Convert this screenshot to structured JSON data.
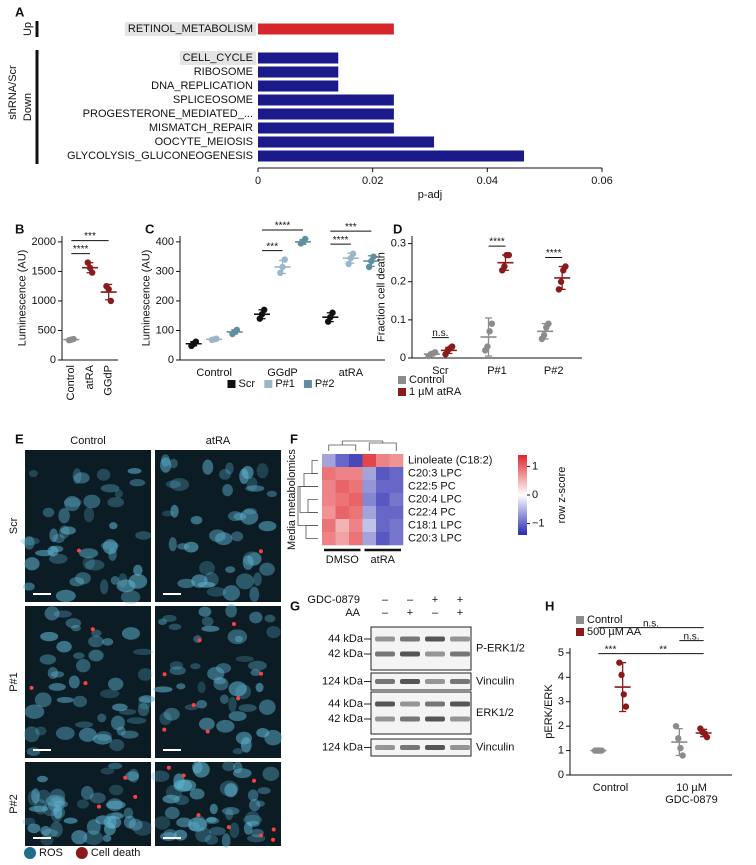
{
  "chart_data": [
    {
      "panel": "A",
      "type": "hbar",
      "xlabel": "p-adj",
      "ylabel": "shRNA/Scr",
      "xlim": [
        0,
        0.06
      ],
      "xticks": [
        0,
        0.02,
        0.04,
        0.06
      ],
      "groups": [
        {
          "name": "Up",
          "color": "#d7262b",
          "categories": [
            "RETINOL_METABOLISM"
          ],
          "values": [
            0.0237
          ],
          "highlight": [
            true
          ]
        },
        {
          "name": "Down",
          "color": "#1a1a8a",
          "categories": [
            "CELL_CYCLE",
            "RIBOSOME",
            "DNA_REPLICATION",
            "SPLICEOSOME",
            "PROGESTERONE_MEDIATED_...",
            "MISMATCH_REPAIR",
            "OOCYTE_MEIOSIS",
            "GLYCOLYSIS_GLUCONEOGENESIS"
          ],
          "values": [
            0.014,
            0.014,
            0.014,
            0.0237,
            0.0237,
            0.0237,
            0.0307,
            0.0464
          ],
          "highlight": [
            true,
            false,
            false,
            false,
            false,
            false,
            false,
            false
          ]
        }
      ]
    },
    {
      "panel": "B",
      "type": "dot",
      "ylabel": "Luminescence (AU)",
      "ylim": [
        0,
        2100
      ],
      "yticks": [
        0,
        500,
        1000,
        1500,
        2000
      ],
      "categories": [
        "Control",
        "atRA",
        "GGdP"
      ],
      "rotate_categories": true,
      "series": [
        {
          "colors": [
            "#8c8c8c",
            "#8b1a1a",
            "#8b1a1a"
          ],
          "points": [
            [
              335,
              345,
              355
            ],
            [
              1650,
              1560,
              1480
            ],
            [
              1250,
              1200,
              1000
            ]
          ],
          "mean": [
            345,
            1563,
            1150
          ],
          "sd": [
            10,
            85,
            130
          ]
        }
      ],
      "annotations": [
        {
          "text": "****",
          "from": [
            0,
            0
          ],
          "to": [
            1,
            0
          ]
        },
        {
          "text": "***",
          "from": [
            0,
            0
          ],
          "to": [
            2,
            0
          ]
        }
      ]
    },
    {
      "panel": "C",
      "type": "dot",
      "ylabel": "Luminescence (AU)",
      "ylim": [
        0,
        420
      ],
      "yticks": [
        0,
        100,
        200,
        300,
        400
      ],
      "categories": [
        "Control",
        "GGdP",
        "atRA"
      ],
      "legend": "bottom",
      "series": [
        {
          "name": "Scr",
          "color": "#111111",
          "points": [
            [
              48,
              55,
              62
            ],
            [
              140,
              155,
              170
            ],
            [
              130,
              145,
              160
            ]
          ],
          "mean": [
            55,
            155,
            145
          ],
          "sd": [
            7,
            15,
            15
          ]
        },
        {
          "name": "P#1",
          "color": "#9ab6c9",
          "points": [
            [
              68,
              70,
              72
            ],
            [
              295,
              315,
              340
            ],
            [
              325,
              345,
              360
            ]
          ],
          "mean": [
            70,
            315,
            345
          ],
          "sd": [
            2,
            22,
            17
          ]
        },
        {
          "name": "P#2",
          "color": "#5f8fa0",
          "points": [
            [
              88,
              95,
              102
            ],
            [
              395,
              400,
              410
            ],
            [
              315,
              335,
              350
            ]
          ],
          "mean": [
            95,
            400,
            335
          ],
          "sd": [
            7,
            8,
            18
          ]
        }
      ],
      "annotations": [
        {
          "text": "***",
          "from": [
            1,
            0
          ],
          "to": [
            1,
            1
          ]
        },
        {
          "text": "****",
          "from": [
            1,
            0
          ],
          "to": [
            1,
            2
          ]
        },
        {
          "text": "****",
          "from": [
            2,
            0
          ],
          "to": [
            2,
            1
          ]
        },
        {
          "text": "***",
          "from": [
            2,
            0
          ],
          "to": [
            2,
            2
          ]
        }
      ]
    },
    {
      "panel": "D",
      "type": "dot",
      "ylabel": "Fraction cell death",
      "ylim": [
        0,
        0.32
      ],
      "yticks": [
        0,
        0.1,
        0.2,
        0.3
      ],
      "categories": [
        "Scr",
        "P#1",
        "P#2"
      ],
      "legend": "bottom-left",
      "series": [
        {
          "name": "Control",
          "color": "#8c8c8c",
          "points": [
            [
              0.005,
              0.01,
              0.012,
              0.015
            ],
            [
              0.02,
              0.03,
              0.07,
              0.09
            ],
            [
              0.05,
              0.06,
              0.08,
              0.09
            ]
          ],
          "mean": [
            0.01,
            0.055,
            0.07
          ],
          "sd": [
            0.004,
            0.05,
            0.02
          ]
        },
        {
          "name": "1 µM atRA",
          "color": "#8b1a1a",
          "points": [
            [
              0.01,
              0.02,
              0.025,
              0.03
            ],
            [
              0.23,
              0.24,
              0.27,
              0.27
            ],
            [
              0.18,
              0.2,
              0.23,
              0.24
            ]
          ],
          "mean": [
            0.02,
            0.25,
            0.21
          ],
          "sd": [
            0.008,
            0.02,
            0.03
          ]
        }
      ],
      "annotations": [
        {
          "text": "n.s.",
          "from": [
            0,
            0
          ],
          "to": [
            0,
            1
          ]
        },
        {
          "text": "****",
          "from": [
            1,
            0
          ],
          "to": [
            1,
            1
          ]
        },
        {
          "text": "****",
          "from": [
            2,
            0
          ],
          "to": [
            2,
            1
          ]
        }
      ]
    },
    {
      "panel": "F",
      "type": "heatmap",
      "ylabel": "Media metabolomics",
      "colorbar_label": "row z-score",
      "rows": [
        "Linoleate (C18:2)",
        "C20:3 LPC",
        "C22:5 PC",
        "C20:4 LPC",
        "C22:4 PC",
        "C18:1 LPC",
        "C20:3 LPC"
      ],
      "column_groups": [
        "DMSO",
        "atRA"
      ],
      "values": [
        [
          -0.6,
          -1.0,
          -1.2,
          1.2,
          0.8,
          0.7
        ],
        [
          0.9,
          0.8,
          0.8,
          -0.6,
          -1.1,
          -1.0
        ],
        [
          0.8,
          1.0,
          0.9,
          -0.7,
          -1.0,
          -1.0
        ],
        [
          0.8,
          0.9,
          1.0,
          -0.8,
          -1.1,
          -0.9
        ],
        [
          0.7,
          1.0,
          0.9,
          -0.6,
          -1.0,
          -1.0
        ],
        [
          0.9,
          0.5,
          0.8,
          -0.4,
          -1.0,
          -0.9
        ],
        [
          0.8,
          0.6,
          0.9,
          -0.6,
          -1.1,
          -0.9
        ]
      ],
      "zlim": [
        -1.4,
        1.4
      ],
      "zticks": [
        1,
        0,
        {
          "value": -1,
          "label": "−1"
        }
      ],
      "colors": [
        "#2a2ab0",
        "#ffffff",
        "#e0262b"
      ]
    },
    {
      "panel": "H",
      "type": "dot",
      "ylabel": "pERK/ERK",
      "ylim": [
        0,
        5.2
      ],
      "yticks": [
        0,
        1,
        2,
        3,
        4,
        5
      ],
      "categories": [
        "Control",
        "10 µM\nGDC-0879"
      ],
      "legend": "top-left",
      "series": [
        {
          "name": "Control",
          "color": "#8c8c8c",
          "points": [
            [
              1,
              1,
              1,
              1
            ],
            [
              2.0,
              1.5,
              1.1,
              0.8
            ]
          ],
          "mean": [
            1,
            1.35
          ],
          "sd": [
            0,
            0.55
          ]
        },
        {
          "name": "500 µM AA",
          "color": "#8b1a1a",
          "points": [
            [
              4.6,
              4.1,
              3.3,
              2.8
            ],
            [
              1.9,
              1.75,
              1.7,
              1.55
            ]
          ],
          "mean": [
            3.6,
            1.72
          ],
          "sd": [
            1.0,
            0.15
          ]
        }
      ],
      "annotations": [
        {
          "text": "***",
          "from": [
            0,
            0
          ],
          "to": [
            0,
            1
          ]
        },
        {
          "text": "**",
          "from": [
            0,
            1
          ],
          "to": [
            1,
            1
          ]
        },
        {
          "text": "n.s.",
          "from": [
            1,
            0
          ],
          "to": [
            1,
            1
          ]
        },
        {
          "text": "n.s.",
          "from": [
            0,
            0
          ],
          "to": [
            1,
            1
          ]
        }
      ]
    }
  ],
  "panel_e": {
    "panel": "E",
    "columns": [
      "Control",
      "atRA"
    ],
    "rows": [
      "Scr",
      "P#1",
      "P#2"
    ],
    "legend": [
      {
        "name": "ROS",
        "color": "#1f6f8b"
      },
      {
        "name": "Cell death",
        "color": "#8b1a1a"
      }
    ]
  },
  "panel_g": {
    "panel": "G",
    "treatments": [
      {
        "name": "GDC-0879",
        "signs": [
          "–",
          "–",
          "+",
          "+"
        ]
      },
      {
        "name": "AA",
        "signs": [
          "–",
          "+",
          "–",
          "+"
        ]
      }
    ],
    "blots": [
      {
        "protein": "P-ERK1/2",
        "markers": [
          "44 kDa",
          "42 kDa"
        ]
      },
      {
        "protein": "Vinculin",
        "markers": [
          "124 kDa"
        ]
      },
      {
        "protein": "ERK1/2",
        "markers": [
          "44 kDa",
          "42 kDa"
        ]
      },
      {
        "protein": "Vinculin",
        "markers": [
          "124 kDa"
        ]
      }
    ]
  }
}
